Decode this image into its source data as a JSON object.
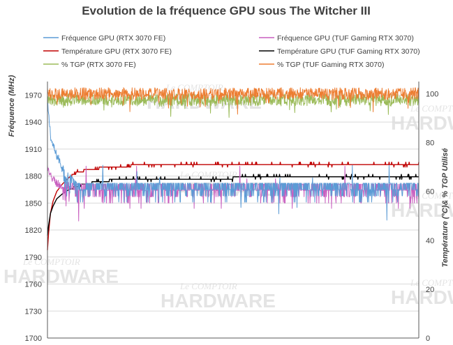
{
  "watermark": {
    "line1": "Le COMPTOIR",
    "line2": "HARDWARE"
  },
  "chart_data": {
    "type": "line",
    "title": "Evolution de la fréquence GPU sous The Witcher III",
    "ylabel": "Fréquence (MHz)",
    "y2label": "Température (°C)& % TGP Utilisé",
    "ylim": [
      1700,
      1985
    ],
    "y2lim": [
      0,
      105
    ],
    "yticks": [
      "1970",
      "1940",
      "1910",
      "1880",
      "1850",
      "1820",
      "1790",
      "1760",
      "1730",
      "1700"
    ],
    "y2ticks": [
      "100",
      "80",
      "60",
      "40",
      "20",
      "0"
    ],
    "xlim": [
      0,
      1000
    ],
    "grid": true,
    "legend_position": "top",
    "series": [
      {
        "name": "Fréquence GPU (RTX 3070 FE)",
        "axis": "left",
        "color": "#5b9bd5",
        "noise": "freq",
        "x": [
          0,
          5,
          10,
          22,
          35,
          45,
          60,
          80,
          1000
        ],
        "values": [
          1960,
          1940,
          1920,
          1905,
          1895,
          1880,
          1875,
          1865,
          1865
        ]
      },
      {
        "name": "Fréquence GPU (TUF Gaming RTX 3070)",
        "axis": "left",
        "color": "#c85fbf",
        "noise": "freq",
        "x": [
          0,
          6,
          12,
          25,
          40,
          55,
          80,
          1000
        ],
        "values": [
          1890,
          1880,
          1878,
          1872,
          1868,
          1866,
          1864,
          1864
        ]
      },
      {
        "name": "Température GPU (RTX 3070 FE)",
        "axis": "right",
        "color": "#c00000",
        "noise": "temp",
        "x": [
          0,
          3,
          8,
          15,
          25,
          40,
          60,
          80,
          100,
          150,
          200,
          300,
          500,
          700,
          1000
        ],
        "values": [
          36,
          43,
          51,
          56,
          60,
          63,
          66,
          67.8,
          68.5,
          69.8,
          70.4,
          70.8,
          71.2,
          71.4,
          71.5
        ]
      },
      {
        "name": "Température GPU (TUF Gaming RTX 3070)",
        "axis": "right",
        "color": "#000000",
        "noise": "temp",
        "x": [
          0,
          3,
          8,
          15,
          25,
          40,
          60,
          80,
          100,
          150,
          200,
          300,
          500,
          700,
          1000
        ],
        "values": [
          42,
          46,
          51,
          54,
          57,
          59,
          61,
          62,
          63,
          64.3,
          64.9,
          65.2,
          65.5,
          65.7,
          65.8
        ]
      },
      {
        "name": "% TGP (RTX 3070 FE)",
        "axis": "right",
        "color": "#9bbb59",
        "noise": "tgp",
        "x": [
          0,
          10,
          1000
        ],
        "values": [
          97,
          97.5,
          97.5
        ]
      },
      {
        "name": "% TGP (TUF Gaming RTX 3070)",
        "axis": "right",
        "color": "#ed7d31",
        "noise": "tgp",
        "x": [
          0,
          10,
          1000
        ],
        "values": [
          100,
          100,
          100
        ]
      }
    ]
  }
}
